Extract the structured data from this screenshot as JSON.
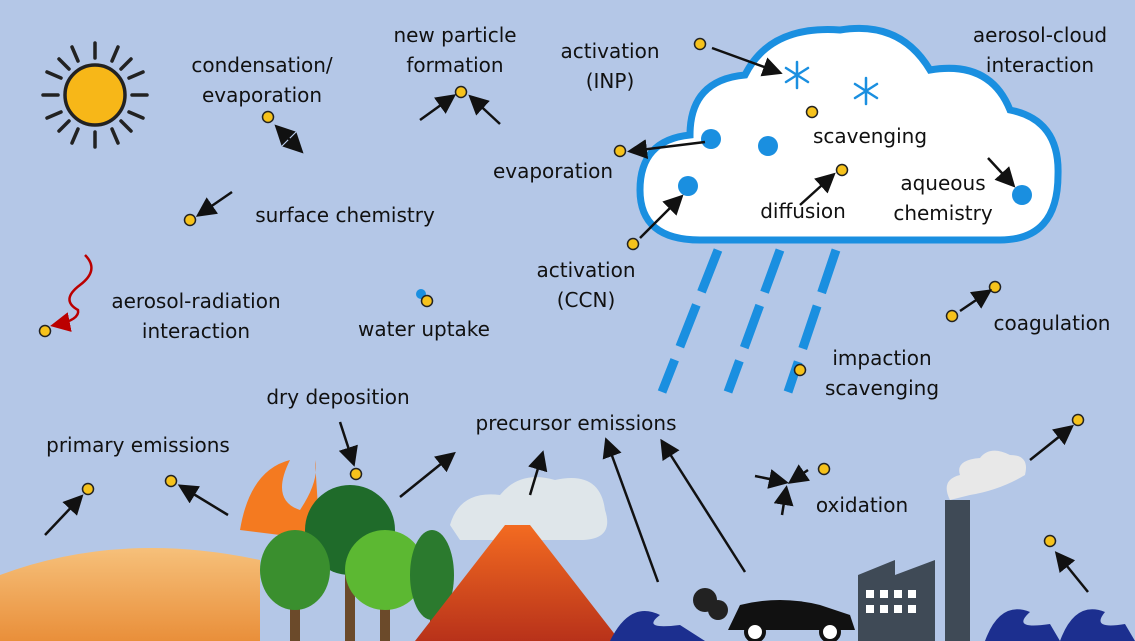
{
  "labels": [
    {
      "lines": [
        "condensation/",
        "evaporation"
      ]
    },
    {
      "lines": [
        "new particle",
        "formation"
      ]
    },
    {
      "lines": [
        "activation",
        "(INP)"
      ]
    },
    {
      "lines": [
        "aerosol-cloud",
        "interaction"
      ]
    },
    {
      "lines": [
        "scavenging"
      ]
    },
    {
      "lines": [
        "evaporation"
      ]
    },
    {
      "lines": [
        "aqueous",
        "chemistry"
      ]
    },
    {
      "lines": [
        "diffusion"
      ]
    },
    {
      "lines": [
        "surface chemistry"
      ]
    },
    {
      "lines": [
        "activation",
        "(CCN)"
      ]
    },
    {
      "lines": [
        "aerosol-radiation",
        "interaction"
      ]
    },
    {
      "lines": [
        "water uptake"
      ]
    },
    {
      "lines": [
        "coagulation"
      ]
    },
    {
      "lines": [
        "impaction",
        "scavenging"
      ]
    },
    {
      "lines": [
        "dry deposition"
      ]
    },
    {
      "lines": [
        "precursor emissions"
      ]
    },
    {
      "lines": [
        "primary emissions"
      ]
    },
    {
      "lines": [
        "oxidation"
      ]
    }
  ]
}
